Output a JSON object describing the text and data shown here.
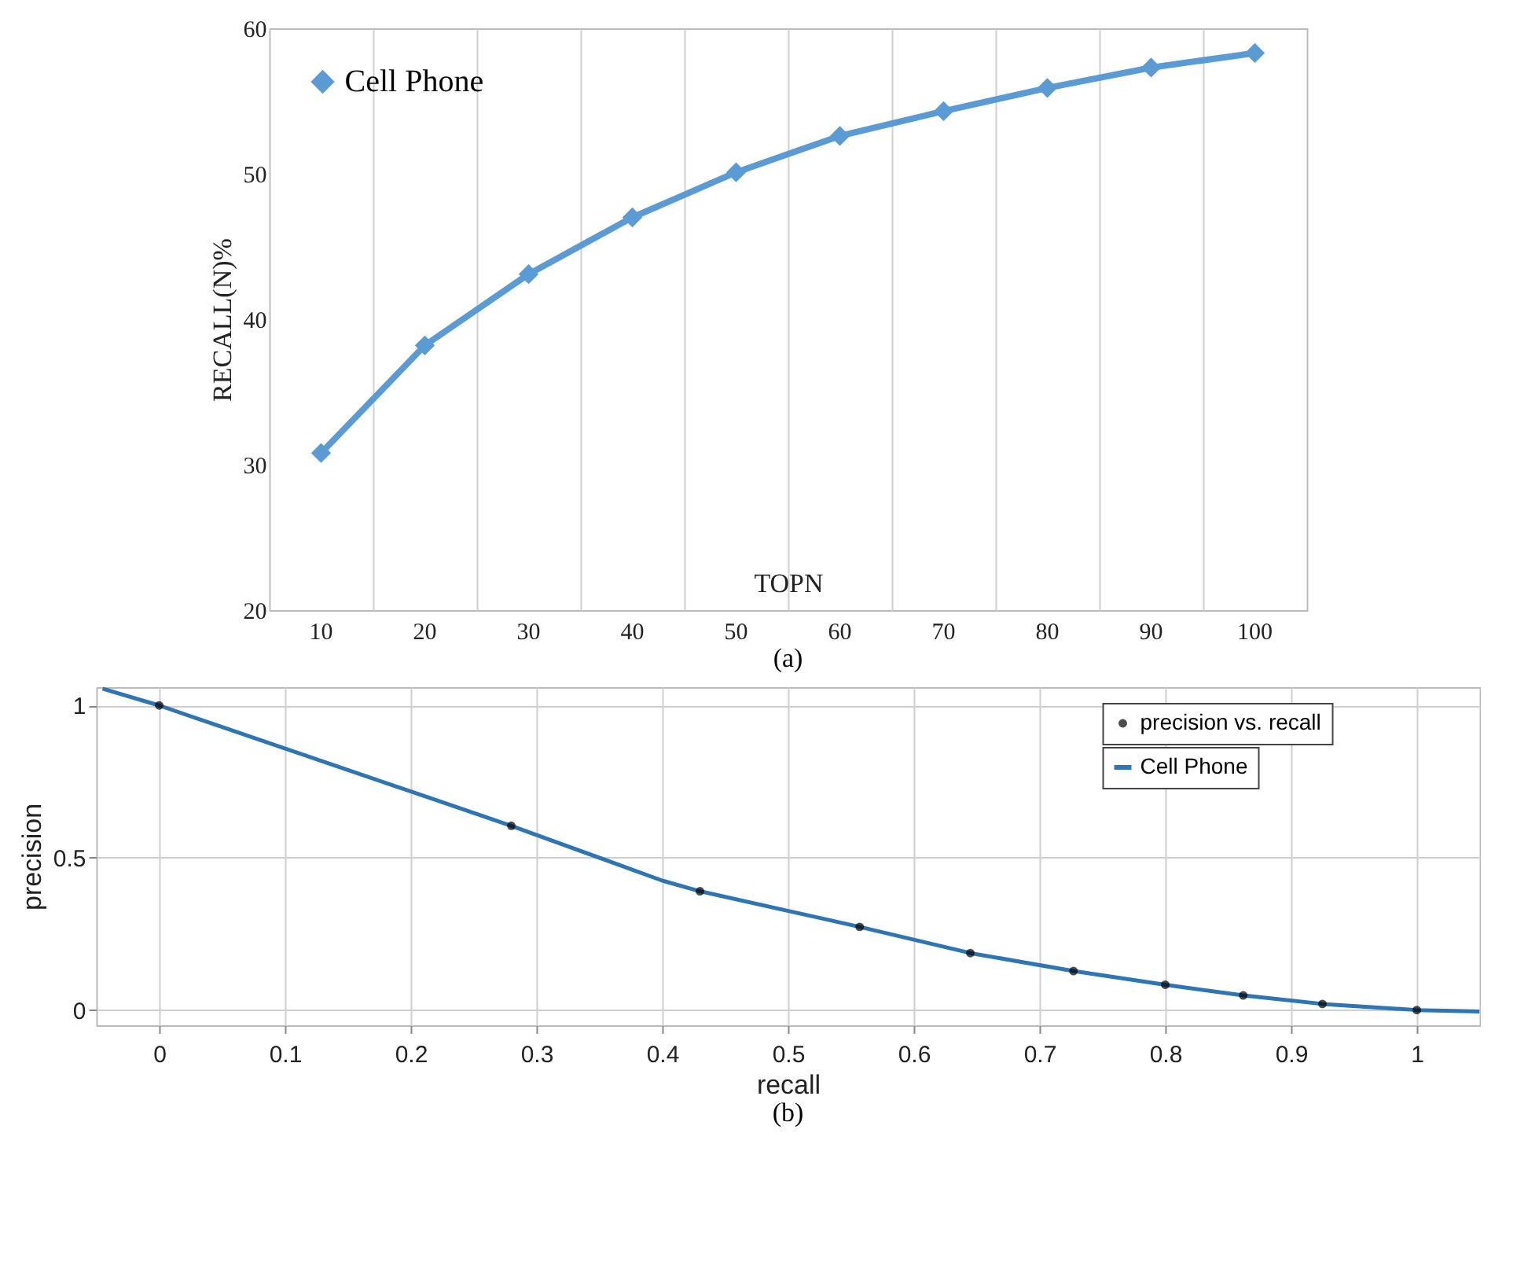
{
  "chart_data": [
    {
      "type": "line",
      "categories": [
        "10",
        "20",
        "30",
        "40",
        "50",
        "60",
        "70",
        "80",
        "90",
        "100"
      ],
      "series": [
        {
          "name": "Cell Phone",
          "color": "#5b9bd5",
          "values": [
            30.8,
            38.2,
            43.1,
            47.0,
            50.1,
            52.6,
            54.3,
            55.9,
            57.3,
            58.3
          ]
        }
      ],
      "xlabel": "TOPN",
      "ylabel": "RECALL(N)%",
      "ylim": [
        20,
        60
      ],
      "yticks": [
        20,
        30,
        40,
        50,
        60
      ],
      "grid": "x",
      "legend": "top left",
      "marker": "diamond",
      "annotations": [
        "(a)"
      ]
    },
    {
      "type": "line",
      "xlabel": "recall",
      "ylabel": "precision",
      "xlim": [
        -0.05,
        1.05
      ],
      "xticks": [
        0,
        0.1,
        0.2,
        0.3,
        0.4,
        0.5,
        0.6,
        0.7,
        0.8,
        0.9,
        1
      ],
      "ylim": [
        -0.05,
        1.06
      ],
      "yticks": [
        0,
        0.5,
        1
      ],
      "series": [
        {
          "name": "precision vs. recall",
          "type": "scatter",
          "marker": "circle",
          "color": "#000000",
          "x": [
            0,
            0.28,
            0.43,
            0.557,
            0.645,
            0.727,
            0.8,
            0.862,
            0.925,
            1.0
          ],
          "values": [
            1.0,
            0.605,
            0.39,
            0.273,
            0.187,
            0.128,
            0.083,
            0.048,
            0.02,
            0.0
          ]
        },
        {
          "name": "Cell Phone",
          "type": "line",
          "marker": "none",
          "color": "#2e75b6",
          "x": [
            -0.045,
            0,
            0.28,
            0.4,
            0.43,
            0.557,
            0.645,
            0.727,
            0.8,
            0.862,
            0.925,
            1.0,
            1.05
          ],
          "values": [
            1.055,
            1.0,
            0.605,
            0.425,
            0.39,
            0.273,
            0.187,
            0.128,
            0.083,
            0.048,
            0.02,
            0.0,
            -0.005
          ]
        }
      ],
      "grid": true,
      "legend": "top right",
      "annotations": [
        "(b)"
      ]
    }
  ]
}
